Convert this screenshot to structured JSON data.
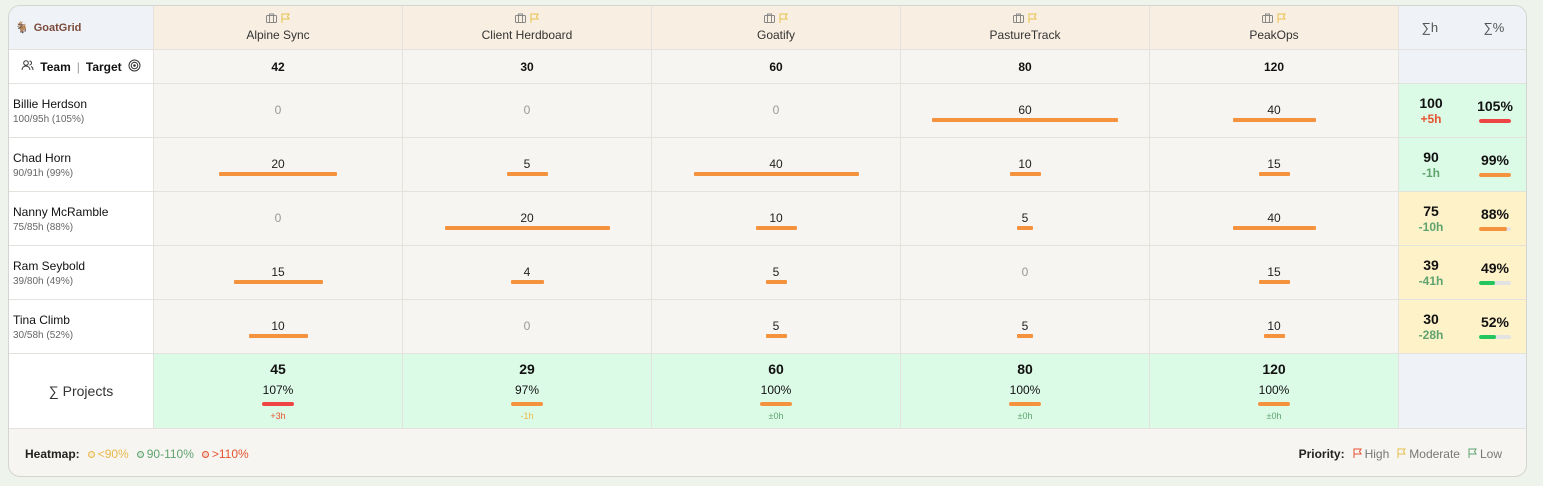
{
  "app": {
    "name": "GoatGrid",
    "logo_icon": "goat-icon"
  },
  "header": {
    "team_label": "Team",
    "target_label": "Target",
    "sum_hours_label": "∑h",
    "sum_percent_label": "∑%"
  },
  "projects": [
    {
      "name": "Alpine Sync",
      "target": "42",
      "priority": "moderate"
    },
    {
      "name": "Client Herdboard",
      "target": "30",
      "priority": "moderate"
    },
    {
      "name": "Goatify",
      "target": "60",
      "priority": "moderate"
    },
    {
      "name": "PastureTrack",
      "target": "80",
      "priority": "moderate"
    },
    {
      "name": "PeakOps",
      "target": "120",
      "priority": "moderate"
    }
  ],
  "people": [
    {
      "name": "Billie Herdson",
      "summary": "100/95h (105%)",
      "hours": [
        "0",
        "0",
        "0",
        "60",
        "40"
      ],
      "total": "100",
      "delta": "+5h",
      "percent": "105%",
      "percent_value": 105,
      "heat": "over"
    },
    {
      "name": "Chad Horn",
      "summary": "90/91h (99%)",
      "hours": [
        "20",
        "5",
        "40",
        "10",
        "15"
      ],
      "total": "90",
      "delta": "-1h",
      "percent": "99%",
      "percent_value": 99,
      "heat": "ok"
    },
    {
      "name": "Nanny McRamble",
      "summary": "75/85h (88%)",
      "hours": [
        "0",
        "20",
        "10",
        "5",
        "40"
      ],
      "total": "75",
      "delta": "-10h",
      "percent": "88%",
      "percent_value": 88,
      "heat": "under"
    },
    {
      "name": "Ram Seybold",
      "summary": "39/80h (49%)",
      "hours": [
        "15",
        "4",
        "5",
        "0",
        "15"
      ],
      "total": "39",
      "delta": "-41h",
      "percent": "49%",
      "percent_value": 49,
      "heat": "under"
    },
    {
      "name": "Tina Climb",
      "summary": "30/58h (52%)",
      "hours": [
        "10",
        "0",
        "5",
        "5",
        "10"
      ],
      "total": "30",
      "delta": "-28h",
      "percent": "52%",
      "percent_value": 52,
      "heat": "under"
    }
  ],
  "totals": {
    "label": "∑ Projects",
    "items": [
      {
        "hours": "45",
        "percent": "107%",
        "delta": "+3h",
        "status": "over"
      },
      {
        "hours": "29",
        "percent": "97%",
        "delta": "-1h",
        "status": "under"
      },
      {
        "hours": "60",
        "percent": "100%",
        "delta": "±0h",
        "status": "ok"
      },
      {
        "hours": "80",
        "percent": "100%",
        "delta": "±0h",
        "status": "ok"
      },
      {
        "hours": "120",
        "percent": "100%",
        "delta": "±0h",
        "status": "ok"
      }
    ]
  },
  "footer": {
    "heatmap_label": "Heatmap:",
    "heatmap": [
      {
        "label": "<90%",
        "color": "#e8b84a"
      },
      {
        "label": "90-110%",
        "color": "#5fa36f"
      },
      {
        "label": ">110%",
        "color": "#e5532f"
      }
    ],
    "priority_label": "Priority:",
    "priorities": [
      {
        "label": "High",
        "color": "#e5532f"
      },
      {
        "label": "Moderate",
        "color": "#e8c04a"
      },
      {
        "label": "Low",
        "color": "#5fa36f"
      }
    ]
  },
  "colors": {
    "bar": "#f5923e",
    "over": "#ef4444",
    "ok_fill": "#f5923e",
    "low_fill": "#22c55e",
    "bg_ok": "#dcfbe6",
    "bg_under": "#fdf2c8",
    "delta_over": "#e5532f",
    "delta_under": "#5fa36f",
    "total_under": "#e8b84a"
  }
}
